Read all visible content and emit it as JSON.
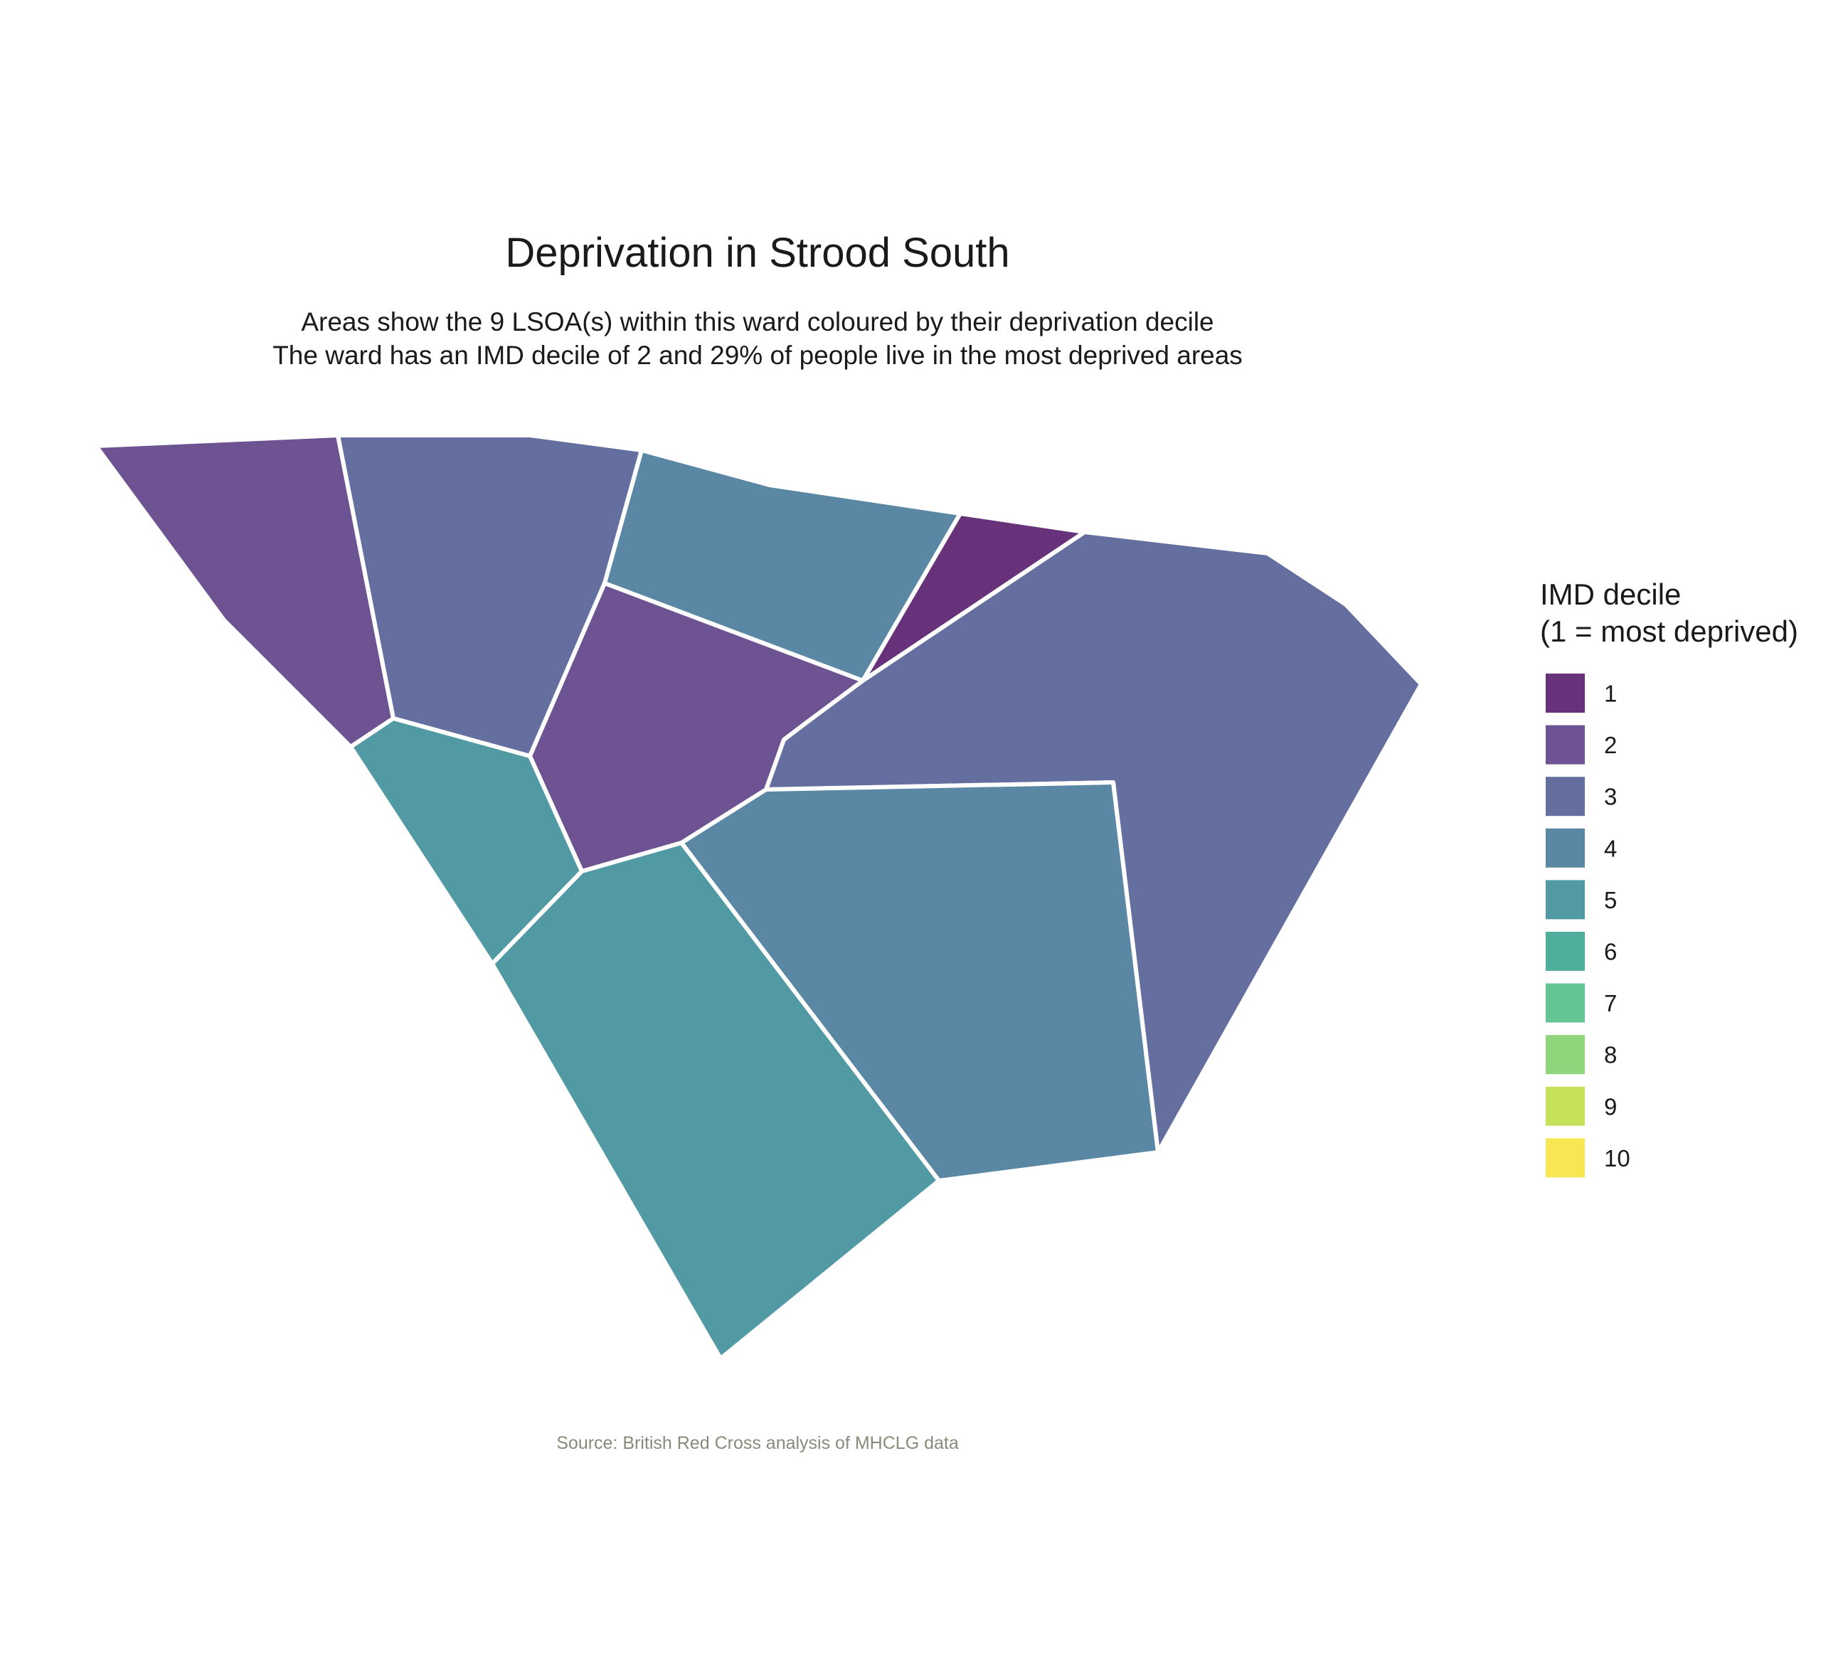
{
  "title": "Deprivation in Strood South",
  "subtitle": [
    "Areas show the 9 LSOA(s) within this ward coloured by their deprivation decile",
    "The ward has an IMD decile of 2 and 29% of people live in the most deprived areas"
  ],
  "caption": "Source: British Red Cross analysis of MHCLG data",
  "legend": {
    "title_lines": [
      "IMD decile",
      "(1 = most deprived)"
    ],
    "items": [
      {
        "label": "1",
        "color": "#67327a"
      },
      {
        "label": "2",
        "color": "#6d5392"
      },
      {
        "label": "3",
        "color": "#646fa0"
      },
      {
        "label": "4",
        "color": "#5a87a3"
      },
      {
        "label": "5",
        "color": "#529aa3"
      },
      {
        "label": "6",
        "color": "#4faf9c"
      },
      {
        "label": "7",
        "color": "#63c593"
      },
      {
        "label": "8",
        "color": "#8ed57b"
      },
      {
        "label": "9",
        "color": "#c6e25b"
      },
      {
        "label": "10",
        "color": "#f8e652"
      }
    ]
  },
  "chart_data": {
    "type": "choropleth",
    "ward": "Strood South",
    "lsoa_count": 9,
    "ward_imd_decile": 2,
    "percent_most_deprived": 29,
    "areas": [
      {
        "decile": 2
      },
      {
        "decile": 3
      },
      {
        "decile": 4
      },
      {
        "decile": 1
      },
      {
        "decile": 2
      },
      {
        "decile": 3
      },
      {
        "decile": 5
      },
      {
        "decile": 4
      },
      {
        "decile": 5
      }
    ]
  }
}
